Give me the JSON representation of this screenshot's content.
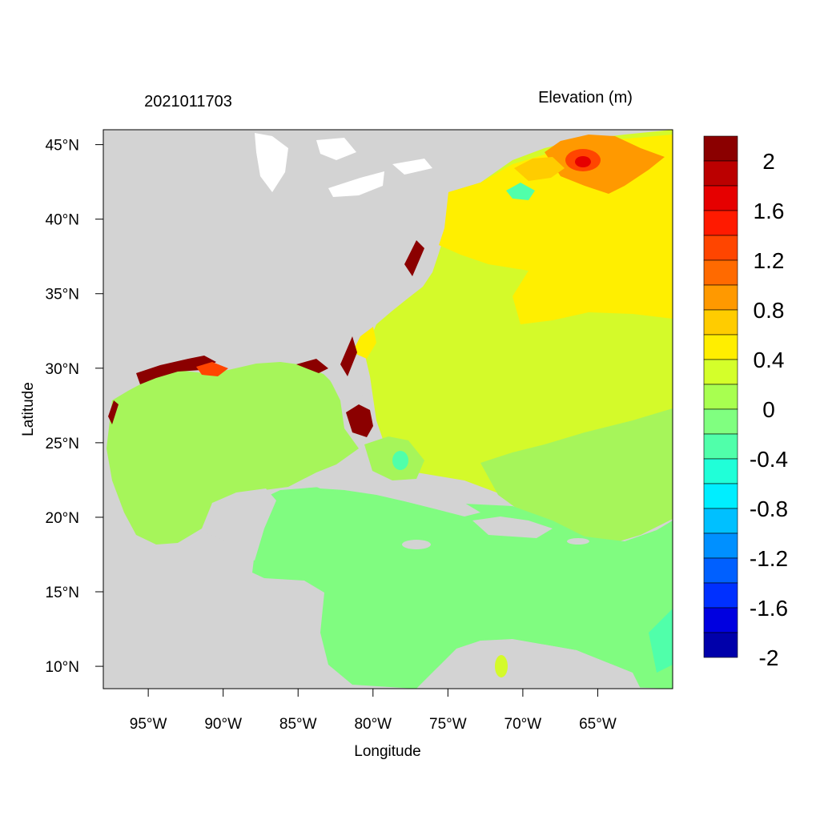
{
  "header": {
    "timestamp": "2021011703",
    "variable": "Elevation (m)"
  },
  "axes": {
    "xlabel": "Longitude",
    "ylabel": "Latitude",
    "xticks": [
      {
        "lon": -95,
        "label": "95°W"
      },
      {
        "lon": -90,
        "label": "90°W"
      },
      {
        "lon": -85,
        "label": "85°W"
      },
      {
        "lon": -80,
        "label": "80°W"
      },
      {
        "lon": -75,
        "label": "75°W"
      },
      {
        "lon": -70,
        "label": "70°W"
      },
      {
        "lon": -65,
        "label": "65°W"
      }
    ],
    "yticks": [
      {
        "lat": 45,
        "label": "45°N"
      },
      {
        "lat": 40,
        "label": "40°N"
      },
      {
        "lat": 35,
        "label": "35°N"
      },
      {
        "lat": 30,
        "label": "30°N"
      },
      {
        "lat": 25,
        "label": "25°N"
      },
      {
        "lat": 20,
        "label": "20°N"
      },
      {
        "lat": 15,
        "label": "15°N"
      },
      {
        "lat": 10,
        "label": "10°N"
      }
    ],
    "lon_range": [
      -98,
      -60
    ],
    "lat_range": [
      8.5,
      46
    ]
  },
  "colorbar": {
    "colors": [
      "#8B0000",
      "#BB0000",
      "#E60000",
      "#FF1A00",
      "#FF4500",
      "#FF6A00",
      "#FF9900",
      "#FFCC00",
      "#FFEE00",
      "#D4FF2A",
      "#A8FF50",
      "#80FF80",
      "#50FFAA",
      "#20FFD8",
      "#00EEFF",
      "#00C0FF",
      "#0090FF",
      "#0060FF",
      "#0030FF",
      "#0000E0",
      "#0000AA"
    ],
    "labels": [
      "2",
      "1.6",
      "1.2",
      "0.8",
      "0.4",
      "0",
      "-0.4",
      "-0.8",
      "-1.2",
      "-1.6",
      "-2"
    ]
  },
  "colors": {
    "land": "#d3d3d3",
    "gulf": "#a6f55a",
    "caribbean": "#80fc80",
    "atlantic_west": "#d4fa2a",
    "atlantic_north": "#ffef00",
    "surge_high": "#8b0000"
  }
}
